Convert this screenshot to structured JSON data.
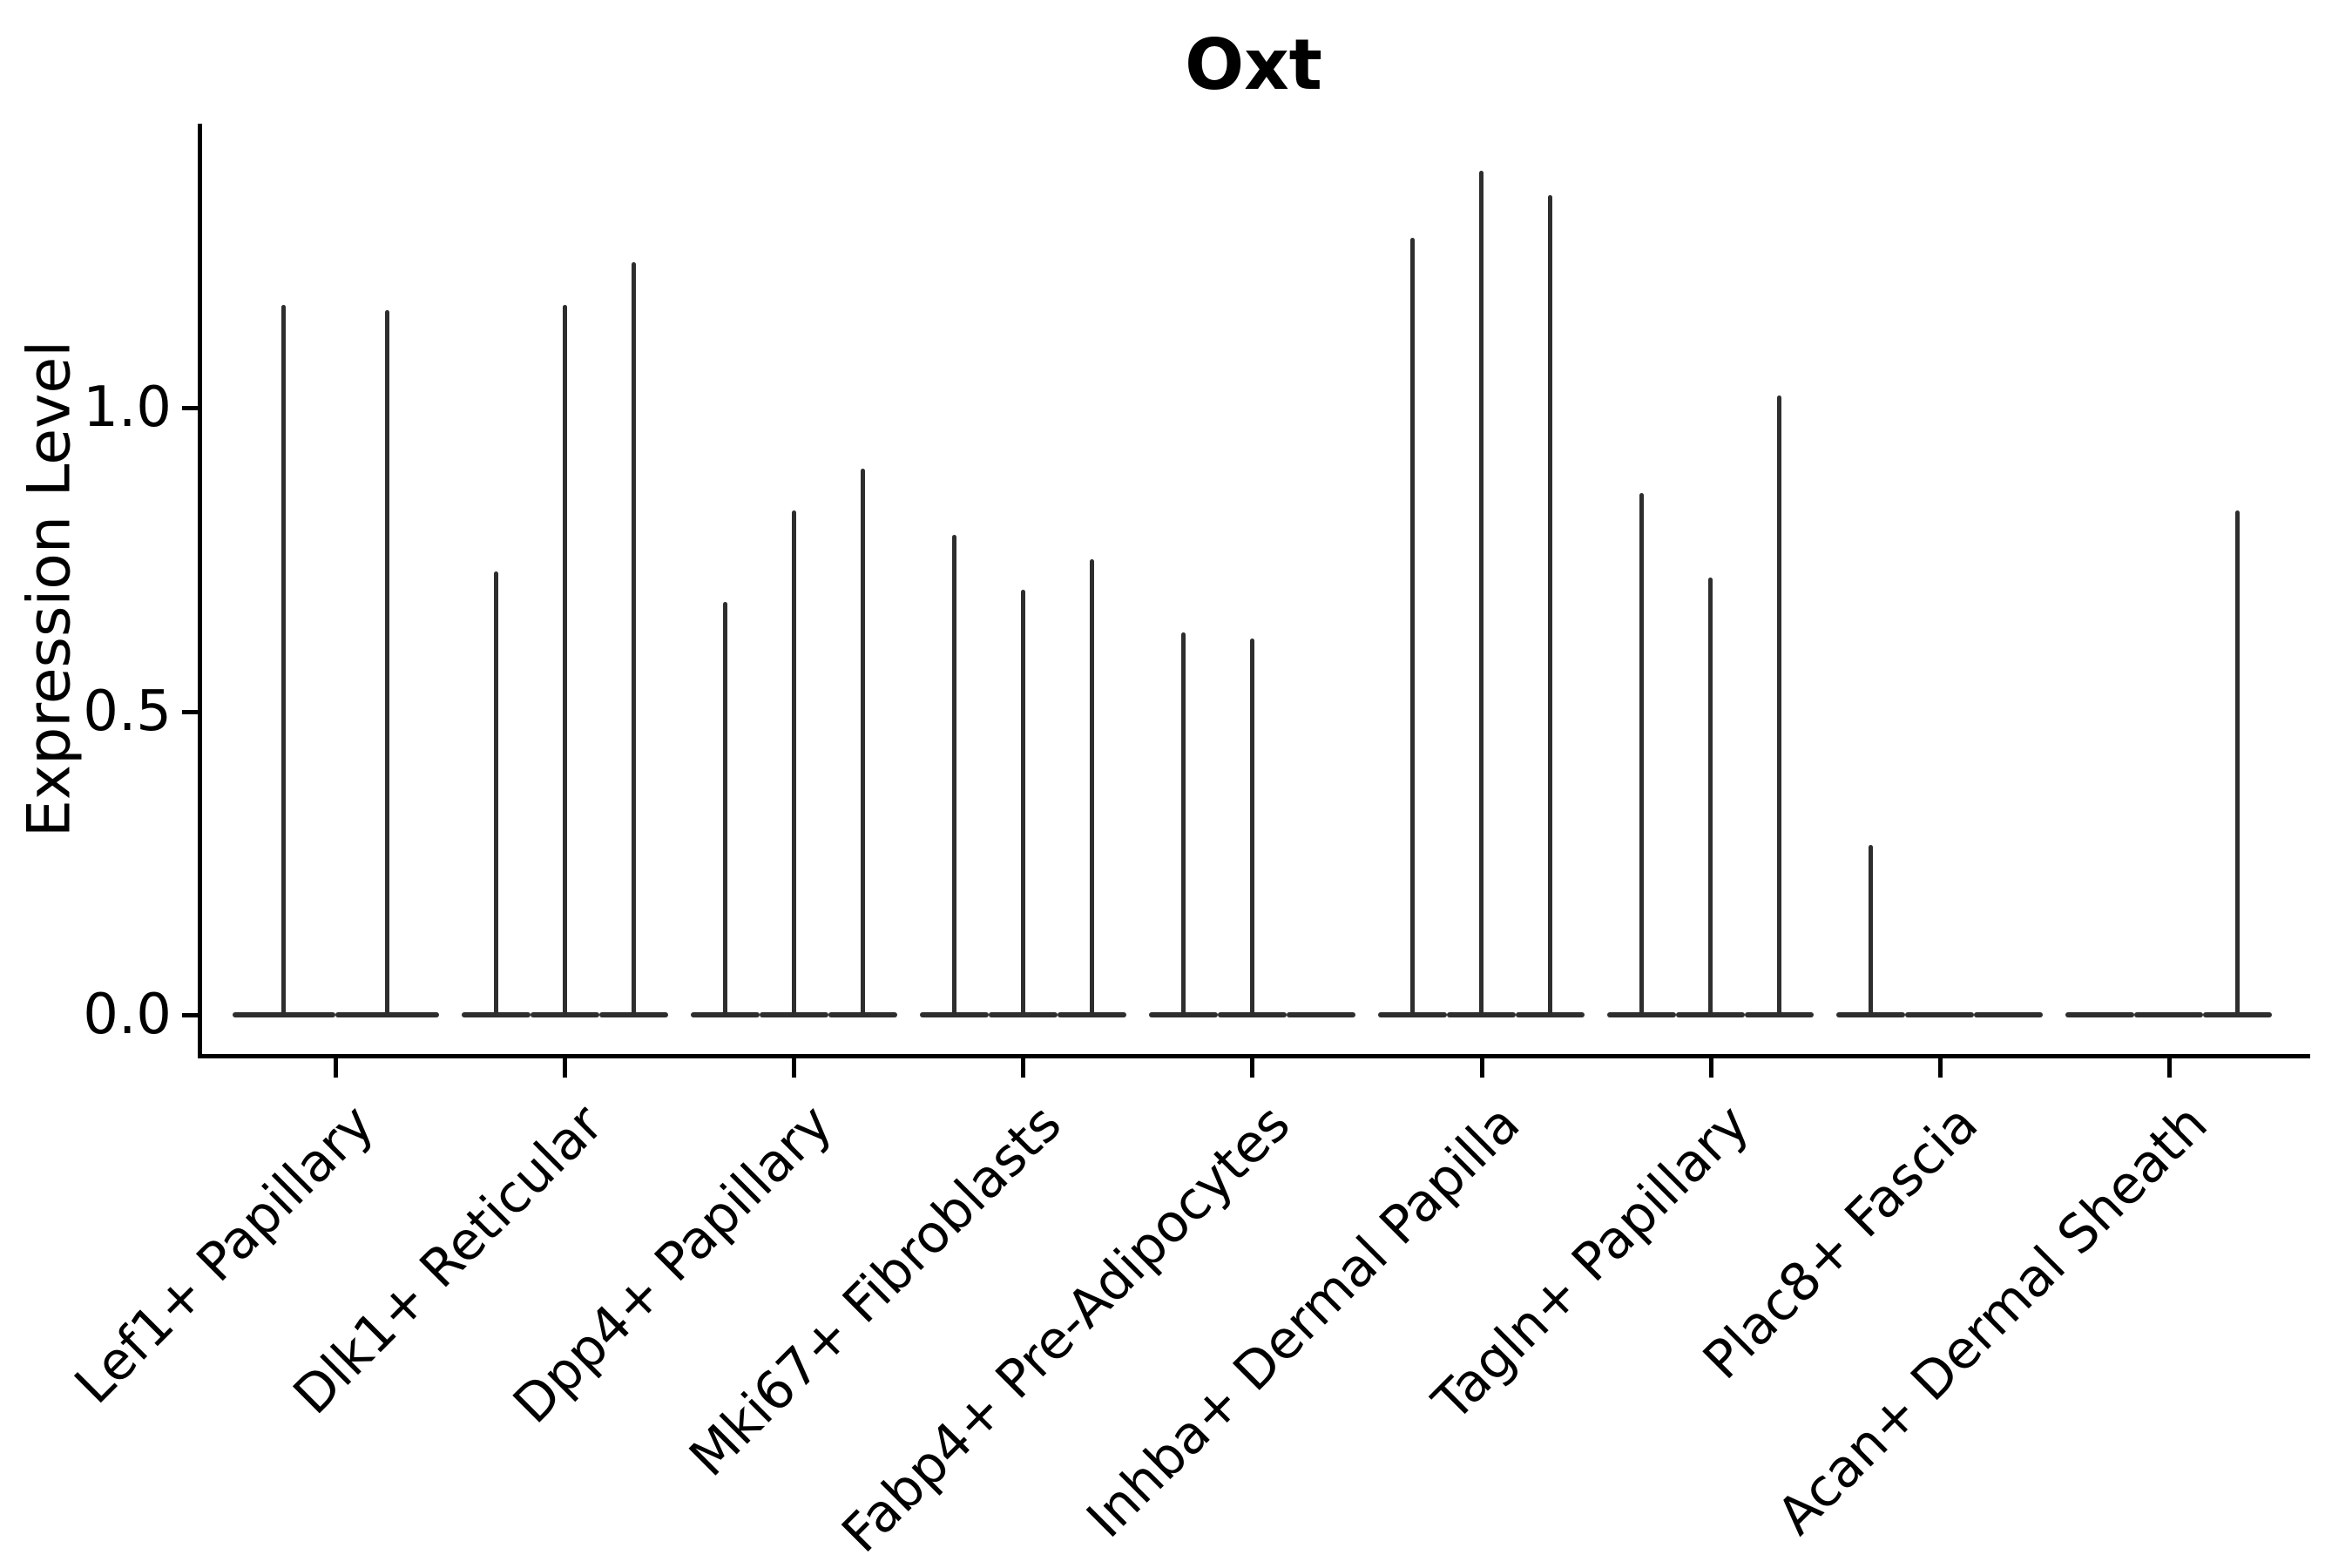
{
  "chart_data": {
    "type": "violin",
    "title": "Oxt",
    "xlabel": "",
    "ylabel": "Expression Level",
    "yticks": [
      {
        "label": "0.0",
        "value": 0.0
      },
      {
        "label": "0.5",
        "value": 0.5
      },
      {
        "label": "1.0",
        "value": 1.0
      }
    ],
    "ylim": [
      -0.065,
      1.47
    ],
    "grid": false,
    "legend": "none",
    "axis_color": "#000000",
    "violin_color": "#2e2e2e",
    "description": "Violin plot of Oxt expression per fibroblast cluster; each cluster holds 2-3 near-zero flat violins whose only visible mass is a thin spike reaching the maximum expression value.",
    "categories": [
      "Lef1+ Papillary",
      "Dlk1+ Reticular",
      "Dpp4+ Papillary",
      "Mki67+ Fibroblasts",
      "Fabp4+ Pre-Adipocytes",
      "Inhba+ Dermal Papilla",
      "Tagln+ Papillary",
      "Plac8+ Fascia",
      "Acan+ Dermal Sheath"
    ],
    "groups": [
      {
        "category": "Lef1+ Papillary",
        "violin_max": [
          1.17,
          1.16
        ]
      },
      {
        "category": "Dlk1+ Reticular",
        "violin_max": [
          0.73,
          1.17,
          1.24
        ]
      },
      {
        "category": "Dpp4+ Papillary",
        "violin_max": [
          0.68,
          0.83,
          0.9
        ]
      },
      {
        "category": "Mki67+ Fibroblasts",
        "violin_max": [
          0.79,
          0.7,
          0.75
        ]
      },
      {
        "category": "Fabp4+ Pre-Adipocytes",
        "violin_max": [
          0.63,
          0.62,
          0.0
        ]
      },
      {
        "category": "Inhba+ Dermal Papilla",
        "violin_max": [
          1.28,
          1.39,
          1.35
        ]
      },
      {
        "category": "Tagln+ Papillary",
        "violin_max": [
          0.86,
          0.72,
          1.02
        ]
      },
      {
        "category": "Plac8+ Fascia",
        "violin_max": [
          0.28,
          0.0,
          0.0
        ]
      },
      {
        "category": "Acan+ Dermal Sheath",
        "violin_max": [
          0.0,
          0.0,
          0.83
        ]
      }
    ]
  }
}
